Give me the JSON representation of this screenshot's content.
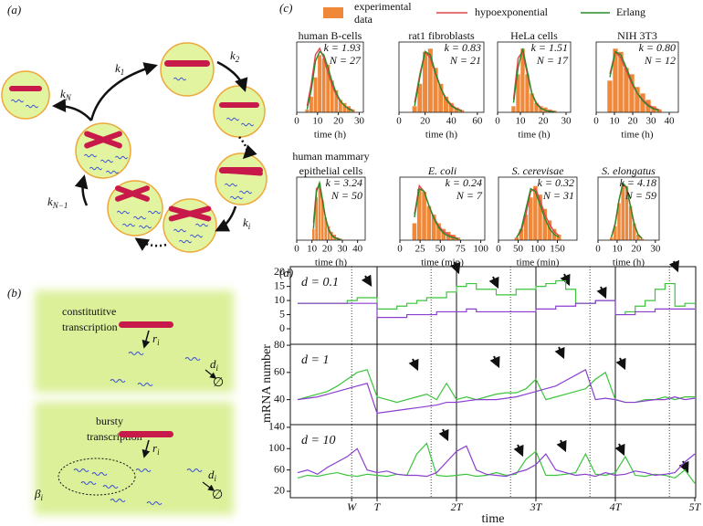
{
  "panel_a": {
    "label": "(a)",
    "rates": [
      {
        "k": "k",
        "sub": "1"
      },
      {
        "k": "k",
        "sub": "2"
      },
      {
        "k": "k",
        "sub": "N"
      },
      {
        "k": "k",
        "sub": "N−1"
      },
      {
        "k": "k",
        "sub": "i"
      }
    ]
  },
  "panel_b": {
    "label": "(b)",
    "constitutive": [
      "constitutitve",
      "transcription"
    ],
    "bursty": [
      "bursty",
      "transcription"
    ],
    "r": {
      "k": "r",
      "sub": "i"
    },
    "d": {
      "k": "d",
      "sub": "i"
    },
    "empty": "∅",
    "beta": {
      "k": "β",
      "sub": "i"
    }
  },
  "panel_c": {
    "label": "(c)",
    "legend": [
      {
        "name": [
          "experimental",
          "data"
        ],
        "color": "#f0883a"
      },
      {
        "name": "hypoexponential",
        "color": "#e3434a"
      },
      {
        "name": "Erlang",
        "color": "#2a8a2a"
      }
    ]
  },
  "panel_d": {
    "label": "(d)",
    "ylabel": "mRNA number",
    "xlabel": "time",
    "xlim": [
      0,
      5
    ],
    "xticks": [
      {
        "value": 0.68,
        "label": "W"
      },
      {
        "value": 1,
        "label": "T"
      },
      {
        "value": 2,
        "label": "2T"
      },
      {
        "value": 3,
        "label": "3T"
      },
      {
        "value": 4,
        "label": "4T"
      },
      {
        "value": 5,
        "label": "5T"
      }
    ],
    "solid_lines": [
      1,
      2,
      3,
      4
    ],
    "dotted_lines": [
      0.68,
      1.68,
      2.68,
      3.68,
      4.68
    ],
    "x": [
      0,
      0.125,
      0.25,
      0.375,
      0.5,
      0.625,
      0.75,
      0.875,
      1,
      1.125,
      1.25,
      1.375,
      1.5,
      1.625,
      1.75,
      1.875,
      2,
      2.125,
      2.25,
      2.375,
      2.5,
      2.625,
      2.75,
      2.875,
      3,
      3.125,
      3.25,
      3.375,
      3.5,
      3.625,
      3.75,
      3.875,
      4,
      4.125,
      4.25,
      4.375,
      4.5,
      4.625,
      4.75,
      4.875,
      5
    ]
  },
  "chart_data": [
    {
      "type": "histogram",
      "title": "human B-cells",
      "k": "k = 1.93",
      "n": "N = 27",
      "xlabel": "time (h)",
      "xlim": [
        0,
        32
      ],
      "xticks": [
        0,
        10,
        20,
        30
      ],
      "ylim": [
        0,
        1.1
      ],
      "bins": [
        4,
        6,
        8,
        10,
        12,
        14,
        16,
        18,
        20,
        22,
        24,
        26,
        28
      ],
      "counts": [
        0.05,
        0.25,
        0.55,
        0.9,
        0.85,
        0.75,
        0.5,
        0.35,
        0.2,
        0.15,
        0.1,
        0.05
      ],
      "curves": [
        [
          0.1,
          0.45,
          0.9,
          1,
          0.85,
          0.62,
          0.42,
          0.27,
          0.17,
          0.1,
          0.06,
          0.03
        ],
        [
          0.05,
          0.35,
          0.8,
          0.95,
          0.9,
          0.7,
          0.48,
          0.3,
          0.18,
          0.1,
          0.05,
          0.02
        ]
      ]
    },
    {
      "type": "histogram",
      "title": "rat1 fibroblasts",
      "k": "k = 0.83",
      "n": "N = 21",
      "xlabel": "time (h)",
      "xlim": [
        0,
        65
      ],
      "xticks": [
        0,
        20,
        40,
        60
      ],
      "ylim": [
        0,
        1.1
      ],
      "bins": [
        10,
        14,
        18,
        22,
        26,
        30,
        34,
        38,
        42,
        46,
        50
      ],
      "counts": [
        0.1,
        0.45,
        0.95,
        1,
        0.7,
        0.45,
        0.25,
        0.15,
        0.08,
        0.04
      ],
      "curves": [
        [
          0.15,
          0.6,
          0.95,
          0.85,
          0.6,
          0.38,
          0.22,
          0.12,
          0.06,
          0.03
        ],
        [
          0.1,
          0.55,
          0.95,
          0.9,
          0.62,
          0.38,
          0.2,
          0.1,
          0.05,
          0.02
        ]
      ]
    },
    {
      "type": "histogram",
      "title": "HeLa cells",
      "k": "k = 1.51",
      "n": "N = 17",
      "xlabel": "time (h)",
      "xlim": [
        0,
        32
      ],
      "xticks": [
        0,
        10,
        20,
        30
      ],
      "ylim": [
        0,
        1.1
      ],
      "bins": [
        6,
        8,
        10,
        12,
        14,
        16,
        18,
        20,
        22,
        24,
        26
      ],
      "counts": [
        0.1,
        0.6,
        1,
        0.6,
        0.3,
        0.15,
        0.1,
        0.08,
        0.05,
        0.03
      ],
      "curves": [
        [
          0.2,
          0.85,
          0.95,
          0.6,
          0.3,
          0.15,
          0.07,
          0.03,
          0.02,
          0.01
        ],
        [
          0.15,
          0.7,
          1,
          0.65,
          0.3,
          0.13,
          0.06,
          0.03,
          0.01,
          0.01
        ]
      ]
    },
    {
      "type": "histogram",
      "title": "NIH 3T3",
      "k": "k = 0.80",
      "n": "N = 12",
      "xlabel": "time (h)",
      "xlim": [
        0,
        45
      ],
      "xticks": [
        0,
        10,
        20,
        30,
        40
      ],
      "ylim": [
        0,
        1.1
      ],
      "bins": [
        6,
        9,
        12,
        15,
        18,
        21,
        24,
        27,
        30,
        33,
        36
      ],
      "counts": [
        0.5,
        1,
        0.95,
        0.7,
        0.6,
        0.4,
        0.3,
        0.2,
        0.1,
        0.05
      ],
      "curves": [
        [
          0.6,
          0.95,
          0.85,
          0.65,
          0.45,
          0.3,
          0.2,
          0.12,
          0.07,
          0.04
        ],
        [
          0.55,
          0.95,
          0.9,
          0.7,
          0.48,
          0.3,
          0.18,
          0.1,
          0.05,
          0.03
        ]
      ]
    },
    {
      "type": "histogram",
      "title": [
        "human mammary",
        "epithelial cells"
      ],
      "k": "k = 3.24",
      "n": "N = 50",
      "xlabel": "time (h)",
      "xlim": [
        0,
        45
      ],
      "xticks": [
        0,
        10,
        20,
        30,
        40
      ],
      "ylim": [
        0,
        1.1
      ],
      "bins": [
        10,
        12,
        14,
        16,
        18,
        20,
        22,
        24,
        26,
        28,
        30
      ],
      "counts": [
        0.2,
        0.75,
        1,
        0.7,
        0.4,
        0.25,
        0.15,
        0.1,
        0.05,
        0.03
      ],
      "curves": [
        [
          0.3,
          0.9,
          0.95,
          0.65,
          0.38,
          0.2,
          0.1,
          0.05,
          0.03,
          0.01
        ],
        [
          0.2,
          0.85,
          1,
          0.7,
          0.38,
          0.18,
          0.08,
          0.04,
          0.02,
          0.01
        ]
      ]
    },
    {
      "type": "histogram",
      "title": "E. coli",
      "italic": true,
      "k": "k = 0.24",
      "n": "N = 7",
      "xlabel": "time (min)",
      "xlim": [
        0,
        105
      ],
      "xticks": [
        0,
        25,
        50,
        75,
        100
      ],
      "ylim": [
        0,
        1.1
      ],
      "bins": [
        15,
        21,
        27,
        33,
        39,
        45,
        51,
        57,
        63,
        69,
        75
      ],
      "counts": [
        0.3,
        0.9,
        0.85,
        0.6,
        0.45,
        0.3,
        0.2,
        0.15,
        0.1,
        0.05
      ],
      "curves": [
        [
          0.45,
          0.95,
          0.85,
          0.6,
          0.4,
          0.25,
          0.15,
          0.1,
          0.06,
          0.03
        ],
        [
          0.4,
          0.9,
          0.85,
          0.6,
          0.38,
          0.22,
          0.12,
          0.07,
          0.04,
          0.02
        ]
      ]
    },
    {
      "type": "histogram",
      "title": "S. cerevisae",
      "italic": true,
      "k": "k = 0.32",
      "n": "N = 31",
      "xlabel": "time (min)",
      "xlim": [
        0,
        200
      ],
      "xticks": [
        0,
        50,
        100,
        150
      ],
      "ylim": [
        0,
        1.1
      ],
      "bins": [
        40,
        52,
        64,
        76,
        88,
        100,
        112,
        124,
        136,
        148,
        160
      ],
      "counts": [
        0.05,
        0.2,
        0.45,
        0.75,
        0.95,
        0.8,
        0.55,
        0.35,
        0.2,
        0.1
      ],
      "curves": [
        [
          0.05,
          0.15,
          0.45,
          0.85,
          0.9,
          0.7,
          0.45,
          0.28,
          0.15,
          0.08
        ],
        [
          0.04,
          0.2,
          0.55,
          0.9,
          0.85,
          0.62,
          0.38,
          0.2,
          0.1,
          0.05
        ]
      ]
    },
    {
      "type": "histogram",
      "title": "S. elongatus",
      "italic": true,
      "k": "k = 4.18",
      "n": "N = 59",
      "xlabel": "time (h)",
      "xlim": [
        0,
        32
      ],
      "xticks": [
        0,
        10,
        20,
        30
      ],
      "ylim": [
        0,
        1.1
      ],
      "bins": [
        6,
        8,
        10,
        12,
        14,
        16,
        18,
        20,
        22,
        24
      ],
      "counts": [
        0.05,
        0.25,
        0.65,
        0.95,
        0.95,
        0.6,
        0.3,
        0.1,
        0.03
      ],
      "curves": [
        [
          0.05,
          0.3,
          0.7,
          0.98,
          0.9,
          0.6,
          0.28,
          0.1,
          0.03
        ],
        [
          0.05,
          0.28,
          0.7,
          1,
          0.92,
          0.58,
          0.27,
          0.09,
          0.03
        ]
      ]
    },
    {
      "type": "line",
      "label": "d = 0.1",
      "step": true,
      "ylim": [
        -5.5,
        22
      ],
      "yticks": [
        0,
        5,
        10,
        15,
        20
      ],
      "series": [
        {
          "color": "#3cc43c",
          "values": [
            9,
            9,
            9,
            9,
            9,
            10,
            11,
            11,
            7,
            7,
            8,
            9,
            10,
            11,
            11,
            13,
            15,
            16,
            14,
            14,
            12,
            12,
            14,
            14,
            15,
            16,
            17,
            14,
            9,
            9,
            10,
            10,
            5,
            6,
            8,
            10,
            14,
            16,
            8,
            9,
            9
          ]
        },
        {
          "color": "#8a3fd0",
          "values": [
            9,
            9,
            9,
            9,
            9,
            9,
            9,
            9,
            4,
            4,
            4,
            5,
            5,
            5,
            6,
            6,
            6,
            7,
            6,
            6,
            6,
            6,
            6,
            6,
            7,
            7,
            8,
            8,
            9,
            9,
            10,
            10,
            5,
            5,
            6,
            6,
            7,
            7,
            7,
            7,
            7
          ]
        }
      ]
    },
    {
      "type": "line",
      "label": "d = 1",
      "ylim": [
        21.6,
        80.7
      ],
      "yticks": [
        40,
        60,
        80
      ],
      "series": [
        {
          "color": "#3cc43c",
          "values": [
            40,
            42,
            44,
            46,
            50,
            55,
            60,
            62,
            42,
            40,
            38,
            40,
            42,
            44,
            40,
            52,
            40,
            42,
            40,
            42,
            44,
            45,
            45,
            48,
            55,
            40,
            42,
            44,
            46,
            48,
            55,
            60,
            40,
            38,
            38,
            40,
            40,
            42,
            40,
            42,
            42
          ]
        },
        {
          "color": "#8a3fd0",
          "values": [
            40,
            41,
            42,
            44,
            46,
            48,
            50,
            52,
            30,
            31,
            32,
            33,
            34,
            35,
            36,
            38,
            38,
            39,
            40,
            40,
            40,
            41,
            42,
            44,
            46,
            48,
            50,
            54,
            58,
            62,
            40,
            41,
            40,
            38,
            38,
            39,
            40,
            40,
            42,
            40,
            41
          ]
        }
      ]
    },
    {
      "type": "line",
      "label": "d = 10",
      "ylim": [
        8,
        145
      ],
      "yticks": [
        20,
        60,
        100,
        140
      ],
      "series": [
        {
          "color": "#3cc43c",
          "values": [
            45,
            50,
            48,
            52,
            55,
            50,
            48,
            52,
            50,
            48,
            52,
            50,
            90,
            110,
            50,
            48,
            50,
            52,
            48,
            50,
            55,
            50,
            52,
            80,
            95,
            50,
            50,
            52,
            55,
            90,
            52,
            50,
            55,
            85,
            50,
            48,
            52,
            50,
            45,
            60,
            35
          ]
        },
        {
          "color": "#8a3fd0",
          "values": [
            55,
            60,
            52,
            65,
            75,
            85,
            100,
            60,
            55,
            58,
            52,
            50,
            50,
            48,
            55,
            75,
            95,
            105,
            60,
            52,
            50,
            48,
            55,
            60,
            70,
            90,
            60,
            55,
            50,
            52,
            48,
            55,
            50,
            52,
            58,
            55,
            50,
            52,
            55,
            75,
            90
          ]
        }
      ]
    }
  ]
}
